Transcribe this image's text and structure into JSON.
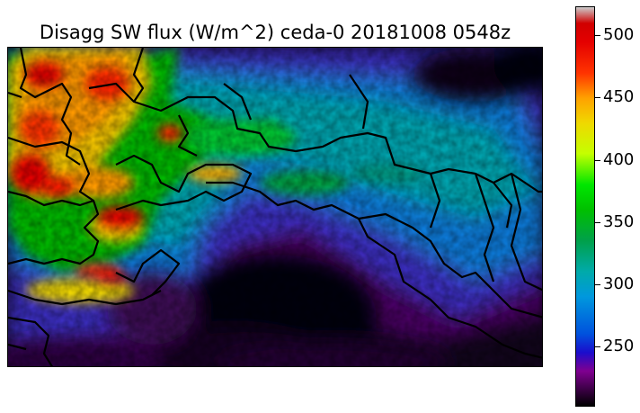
{
  "title": "Disagg SW flux (W/m^2) ceda-0 20181008 0548z",
  "colorbar": {
    "min": 202,
    "max": 523,
    "ticks": [
      "250",
      "300",
      "350",
      "400",
      "450",
      "500"
    ],
    "tick_values": [
      250,
      300,
      350,
      400,
      450,
      500
    ],
    "colormap": "nipy_spectral",
    "colors": {
      "202": "#000000",
      "215": "#3a0044",
      "230": "#7f0090",
      "245": "#1a0dcc",
      "260": "#0052dd",
      "290": "#0098dd",
      "310": "#00aaaa",
      "335": "#00a04a",
      "360": "#00c000",
      "380": "#00e600",
      "405": "#c4ff00",
      "430": "#f0d800",
      "450": "#ffa000",
      "470": "#ff3300",
      "495": "#e40000",
      "510": "#d00000",
      "523": "#cccccc"
    }
  },
  "map": {
    "description": "Shortwave flux field over mountainous region with country borders"
  }
}
